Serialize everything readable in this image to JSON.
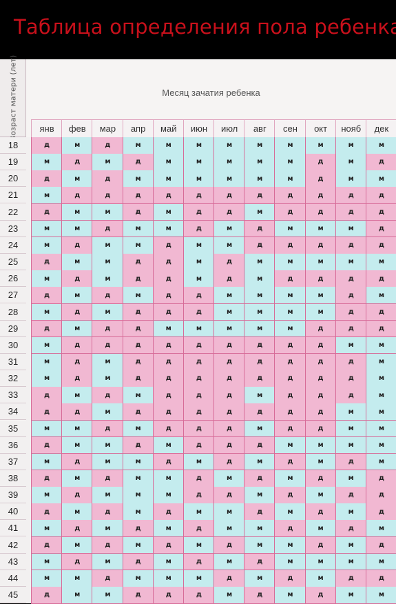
{
  "title": "Таблица определения пола ребенка",
  "age_header": "Возраст матери (лет)",
  "month_header": "Месяц зачатия ребенка",
  "months": [
    "янв",
    "фев",
    "мар",
    "апр",
    "май",
    "июн",
    "июл",
    "авг",
    "сен",
    "окт",
    "нояб",
    "дек"
  ],
  "colors": {
    "m": "#c4ecee",
    "d": "#f1b8d2",
    "title": "#c8101b"
  },
  "rows": [
    {
      "age": "18",
      "cells": [
        "д",
        "м",
        "д",
        "м",
        "м",
        "м",
        "м",
        "м",
        "м",
        "м",
        "м",
        "м"
      ]
    },
    {
      "age": "19",
      "cells": [
        "м",
        "д",
        "м",
        "д",
        "м",
        "м",
        "м",
        "м",
        "м",
        "д",
        "м",
        "д"
      ]
    },
    {
      "age": "20",
      "cells": [
        "д",
        "м",
        "д",
        "м",
        "м",
        "м",
        "м",
        "м",
        "м",
        "д",
        "м",
        "м"
      ]
    },
    {
      "age": "21",
      "cells": [
        "м",
        "д",
        "д",
        "д",
        "д",
        "д",
        "д",
        "д",
        "д",
        "д",
        "д",
        "д"
      ]
    },
    {
      "age": "22",
      "cells": [
        "д",
        "м",
        "м",
        "д",
        "м",
        "д",
        "д",
        "м",
        "д",
        "д",
        "д",
        "д"
      ]
    },
    {
      "age": "23",
      "cells": [
        "м",
        "м",
        "д",
        "м",
        "м",
        "д",
        "м",
        "д",
        "м",
        "м",
        "м",
        "д"
      ]
    },
    {
      "age": "24",
      "cells": [
        "м",
        "д",
        "м",
        "м",
        "д",
        "м",
        "м",
        "д",
        "д",
        "д",
        "д",
        "д"
      ]
    },
    {
      "age": "25",
      "cells": [
        "д",
        "м",
        "м",
        "д",
        "д",
        "м",
        "д",
        "м",
        "м",
        "м",
        "м",
        "м"
      ]
    },
    {
      "age": "26",
      "cells": [
        "м",
        "д",
        "м",
        "д",
        "д",
        "м",
        "д",
        "м",
        "д",
        "д",
        "д",
        "д"
      ]
    },
    {
      "age": "27",
      "cells": [
        "д",
        "м",
        "д",
        "м",
        "д",
        "д",
        "м",
        "м",
        "м",
        "м",
        "д",
        "м"
      ]
    },
    {
      "age": "28",
      "cells": [
        "м",
        "д",
        "м",
        "д",
        "д",
        "д",
        "м",
        "м",
        "м",
        "м",
        "д",
        "д"
      ]
    },
    {
      "age": "29",
      "cells": [
        "д",
        "м",
        "д",
        "д",
        "м",
        "м",
        "м",
        "м",
        "м",
        "д",
        "д",
        "д"
      ]
    },
    {
      "age": "30",
      "cells": [
        "м",
        "д",
        "д",
        "д",
        "д",
        "д",
        "д",
        "д",
        "д",
        "д",
        "м",
        "м"
      ]
    },
    {
      "age": "31",
      "cells": [
        "м",
        "д",
        "м",
        "д",
        "д",
        "д",
        "д",
        "д",
        "д",
        "д",
        "д",
        "м"
      ]
    },
    {
      "age": "32",
      "cells": [
        "м",
        "д",
        "м",
        "д",
        "д",
        "д",
        "д",
        "д",
        "д",
        "д",
        "д",
        "м"
      ]
    },
    {
      "age": "33",
      "cells": [
        "д",
        "м",
        "д",
        "м",
        "д",
        "д",
        "д",
        "м",
        "д",
        "д",
        "д",
        "м"
      ]
    },
    {
      "age": "34",
      "cells": [
        "д",
        "д",
        "м",
        "д",
        "д",
        "д",
        "д",
        "д",
        "д",
        "д",
        "м",
        "м"
      ]
    },
    {
      "age": "35",
      "cells": [
        "м",
        "м",
        "д",
        "м",
        "д",
        "д",
        "д",
        "м",
        "д",
        "д",
        "м",
        "м"
      ]
    },
    {
      "age": "36",
      "cells": [
        "д",
        "м",
        "м",
        "д",
        "м",
        "д",
        "д",
        "д",
        "м",
        "м",
        "м",
        "м"
      ]
    },
    {
      "age": "37",
      "cells": [
        "м",
        "д",
        "м",
        "м",
        "д",
        "м",
        "д",
        "м",
        "д",
        "м",
        "д",
        "м"
      ]
    },
    {
      "age": "38",
      "cells": [
        "д",
        "м",
        "д",
        "м",
        "м",
        "д",
        "м",
        "д",
        "м",
        "д",
        "м",
        "д"
      ]
    },
    {
      "age": "39",
      "cells": [
        "м",
        "д",
        "м",
        "м",
        "м",
        "д",
        "д",
        "м",
        "д",
        "м",
        "д",
        "д"
      ]
    },
    {
      "age": "40",
      "cells": [
        "д",
        "м",
        "д",
        "м",
        "д",
        "м",
        "м",
        "д",
        "м",
        "д",
        "м",
        "д"
      ]
    },
    {
      "age": "41",
      "cells": [
        "м",
        "д",
        "м",
        "д",
        "м",
        "д",
        "м",
        "м",
        "д",
        "м",
        "д",
        "м"
      ]
    },
    {
      "age": "42",
      "cells": [
        "д",
        "м",
        "д",
        "м",
        "д",
        "м",
        "д",
        "м",
        "м",
        "д",
        "м",
        "д"
      ]
    },
    {
      "age": "43",
      "cells": [
        "м",
        "д",
        "м",
        "д",
        "м",
        "д",
        "м",
        "д",
        "м",
        "м",
        "м",
        "м"
      ]
    },
    {
      "age": "44",
      "cells": [
        "м",
        "м",
        "д",
        "м",
        "м",
        "м",
        "д",
        "м",
        "д",
        "м",
        "д",
        "д"
      ]
    },
    {
      "age": "45",
      "cells": [
        "д",
        "м",
        "м",
        "д",
        "д",
        "д",
        "м",
        "д",
        "м",
        "д",
        "м",
        "м"
      ]
    }
  ]
}
